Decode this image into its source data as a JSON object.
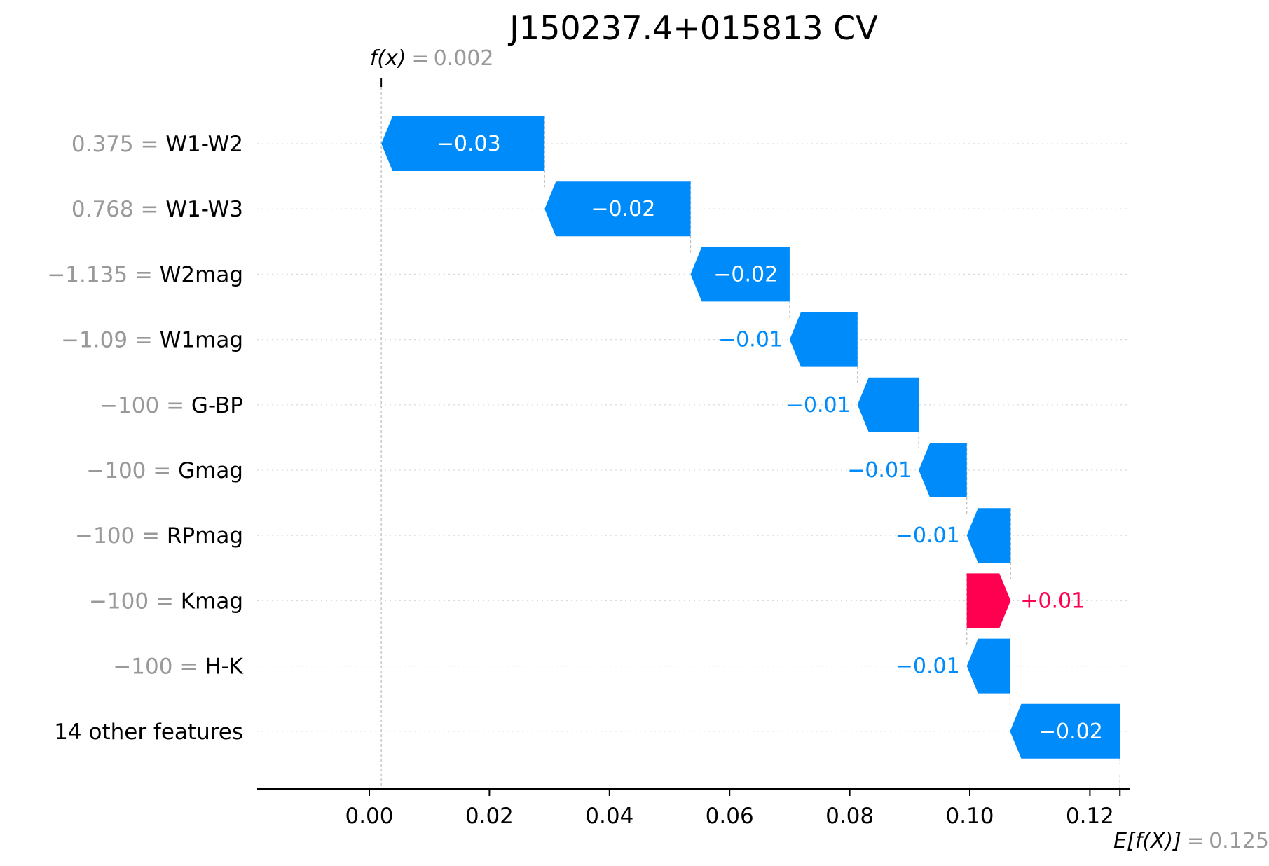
{
  "chart_data": {
    "type": "waterfall",
    "title": "J150237.4+015813 CV",
    "fx_label": "f(x)",
    "fx_value": "0.002",
    "fx": 0.002,
    "ex_label": "E[f(X)]",
    "ex_value": "0.125",
    "ex": 0.125,
    "xlim": [
      -0.02,
      0.125
    ],
    "xticks": [
      0.0,
      0.02,
      0.04,
      0.06,
      0.08,
      0.1,
      0.12
    ],
    "xtick_labels": [
      "0.00",
      "0.02",
      "0.04",
      "0.06",
      "0.08",
      "0.10",
      "0.12"
    ],
    "features": [
      {
        "value": "0.375",
        "name": "W1-W2",
        "start": 0.0292,
        "end": 0.002,
        "label": "−0.03"
      },
      {
        "value": "0.768",
        "name": "W1-W3",
        "start": 0.0535,
        "end": 0.0292,
        "label": "−0.02"
      },
      {
        "value": "−1.135",
        "name": "W2mag",
        "start": 0.07,
        "end": 0.0535,
        "label": "−0.02"
      },
      {
        "value": "−1.09",
        "name": "W1mag",
        "start": 0.0813,
        "end": 0.07,
        "label": "−0.01"
      },
      {
        "value": "−100",
        "name": "G-BP",
        "start": 0.0915,
        "end": 0.0813,
        "label": "−0.01"
      },
      {
        "value": "−100",
        "name": "Gmag",
        "start": 0.0995,
        "end": 0.0915,
        "label": "−0.01"
      },
      {
        "value": "−100",
        "name": "RPmag",
        "start": 0.1068,
        "end": 0.0995,
        "label": "−0.01"
      },
      {
        "value": "−100",
        "name": "Kmag",
        "start": 0.0995,
        "end": 0.1068,
        "label": "+0.01"
      },
      {
        "value": "−100",
        "name": "H-K",
        "start": 0.1067,
        "end": 0.0995,
        "label": "−0.01"
      },
      {
        "value": "",
        "name": "14 other features",
        "start": 0.125,
        "end": 0.1067,
        "label": "−0.02"
      }
    ],
    "colors": {
      "negative": "#008bfb",
      "positive": "#ff0051",
      "annotation": "#999999",
      "grid": "#cccccc"
    }
  }
}
